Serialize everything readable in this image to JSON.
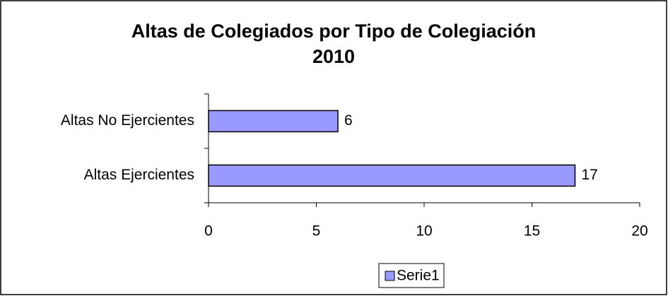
{
  "chart_data": {
    "type": "hbar",
    "title": [
      "Altas de Colegiados por Tipo de Colegiación",
      "2010"
    ],
    "categories": [
      "Altas Ejercientes",
      "Altas No Ejercientes"
    ],
    "series": [
      {
        "name": "Serie1",
        "color": "#9999ff",
        "values": [
          17,
          6
        ]
      }
    ],
    "xlim": [
      0,
      20
    ],
    "xticks": [
      0,
      5,
      10,
      15,
      20
    ],
    "legend": "bottom",
    "grid": false
  }
}
